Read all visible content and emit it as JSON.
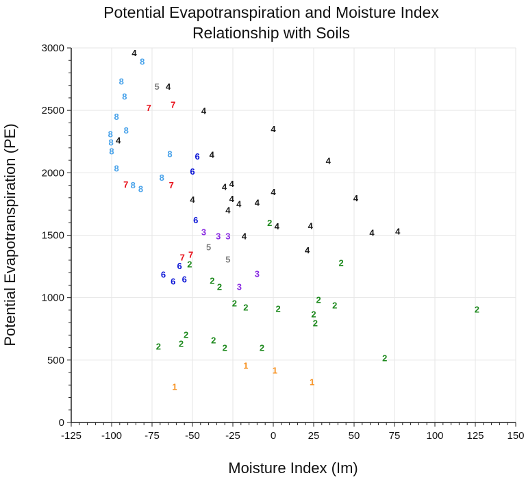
{
  "chart_data": {
    "type": "scatter",
    "title": [
      "Potential Evapotranspiration and Moisture Index",
      "Relationship with Soils"
    ],
    "xlabel": "Moisture Index (Im)",
    "ylabel": "Potential Evapotranspiration (PE)",
    "xlim": [
      -125,
      150
    ],
    "ylim": [
      0,
      3000
    ],
    "xticks": [
      -125,
      -100,
      -75,
      -50,
      -25,
      0,
      25,
      50,
      75,
      100,
      125,
      150
    ],
    "yticks": [
      0,
      500,
      1000,
      1500,
      2000,
      2500,
      3000
    ],
    "grid": true,
    "marker": "text label (soil class number)",
    "colors": {
      "1": "#f7901e",
      "2": "#1e8a1e",
      "3": "#8a2be2",
      "4": "#1a1a1a",
      "5": "#808080",
      "6": "#0a14d6",
      "7": "#e8101a",
      "8": "#4aa3ea"
    },
    "points": [
      [
        -86,
        2960,
        "4"
      ],
      [
        -81,
        2890,
        "8"
      ],
      [
        -94,
        2730,
        "8"
      ],
      [
        -92,
        2610,
        "8"
      ],
      [
        -72,
        2690,
        "5"
      ],
      [
        -65,
        2690,
        "4"
      ],
      [
        -77,
        2520,
        "7"
      ],
      [
        -62,
        2545,
        "7"
      ],
      [
        -43,
        2495,
        "4"
      ],
      [
        -97,
        2450,
        "8"
      ],
      [
        -91,
        2340,
        "8"
      ],
      [
        0,
        2350,
        "4"
      ],
      [
        -100,
        2270,
        "8"
      ],
      [
        -100,
        2245,
        "8"
      ],
      [
        -100,
        2210,
        "8"
      ],
      [
        -97,
        2260,
        "4"
      ],
      [
        -64,
        2150,
        "8"
      ],
      [
        -47,
        2130,
        "6"
      ],
      [
        -38,
        2145,
        "4"
      ],
      [
        34,
        2095,
        "4"
      ],
      [
        -97,
        2035,
        "8"
      ],
      [
        -50,
        2010,
        "6"
      ],
      [
        -69,
        1960,
        "8"
      ],
      [
        -90,
        1905,
        "7"
      ],
      [
        -88,
        1900,
        "8"
      ],
      [
        -82,
        1870,
        "8"
      ],
      [
        -63,
        1900,
        "7"
      ],
      [
        -30,
        1887,
        "4"
      ],
      [
        -26,
        1910,
        "4"
      ],
      [
        0,
        1845,
        "4"
      ],
      [
        -50,
        1785,
        "4"
      ],
      [
        -25,
        1790,
        "4"
      ],
      [
        -22,
        1750,
        "4"
      ],
      [
        -10,
        1760,
        "4"
      ],
      [
        51,
        1795,
        "4"
      ],
      [
        -28,
        1700,
        "4"
      ],
      [
        -48,
        1620,
        "6"
      ],
      [
        -1,
        1600,
        "2"
      ],
      [
        1,
        1570,
        "4"
      ],
      [
        23,
        1575,
        "4"
      ],
      [
        -43,
        1525,
        "3"
      ],
      [
        -34,
        1492,
        "3"
      ],
      [
        -28,
        1492,
        "3"
      ],
      [
        -18,
        1492,
        "4"
      ],
      [
        61,
        1520,
        "4"
      ],
      [
        77,
        1530,
        "4"
      ],
      [
        -40,
        1405,
        "5"
      ],
      [
        -28,
        1305,
        "5"
      ],
      [
        21,
        1378,
        "4"
      ],
      [
        -56,
        1310,
        "7"
      ],
      [
        -51,
        1345,
        "7"
      ],
      [
        -58,
        1267,
        "6"
      ],
      [
        -52,
        1267,
        "2"
      ],
      [
        42,
        1278,
        "2"
      ],
      [
        -68,
        1185,
        "6"
      ],
      [
        -10,
        1190,
        "3"
      ],
      [
        -62,
        1130,
        "6"
      ],
      [
        -55,
        1146,
        "6"
      ],
      [
        -37,
        1135,
        "2"
      ],
      [
        -34,
        1086,
        "2"
      ],
      [
        -21,
        1086,
        "3"
      ],
      [
        -24,
        955,
        "2"
      ],
      [
        -17,
        922,
        "2"
      ],
      [
        3,
        911,
        "2"
      ],
      [
        28,
        982,
        "2"
      ],
      [
        38,
        938,
        "2"
      ],
      [
        25,
        845,
        "2"
      ],
      [
        26,
        817,
        "2"
      ],
      [
        126,
        905,
        "2"
      ],
      [
        -71,
        610,
        "2"
      ],
      [
        -57,
        630,
        "2"
      ],
      [
        -54,
        702,
        "2"
      ],
      [
        -37,
        658,
        "2"
      ],
      [
        -30,
        598,
        "2"
      ],
      [
        -7,
        598,
        "2"
      ],
      [
        69,
        516,
        "2"
      ],
      [
        -61,
        285,
        "1"
      ],
      [
        -17,
        455,
        "1"
      ],
      [
        1,
        417,
        "1"
      ],
      [
        24,
        324,
        "1"
      ]
    ]
  }
}
